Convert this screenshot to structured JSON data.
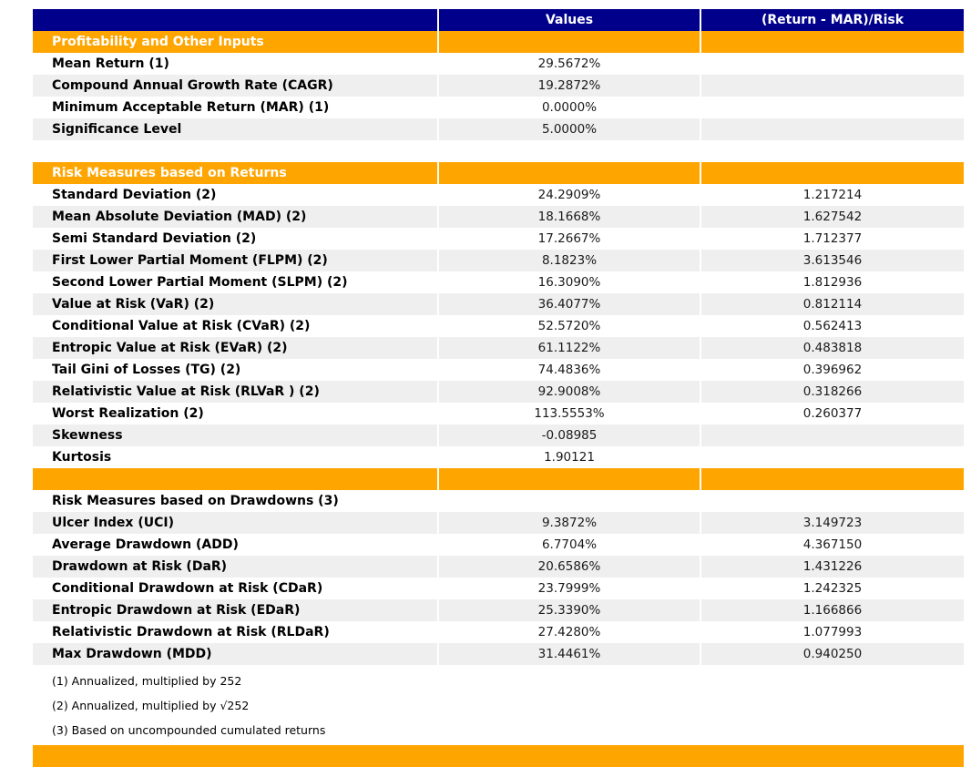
{
  "colors": {
    "header_bg": "#00008B",
    "section_bg": "#FFA500",
    "stripe_bg": "#EFEFEF",
    "header_text": "#FFFFFF"
  },
  "chart_data": {
    "type": "table",
    "title": "",
    "columns": [
      "",
      "Values",
      "(Return - MAR)/Risk"
    ],
    "rows": [
      {
        "kind": "section",
        "label": "Profitability and Other Inputs",
        "value": "",
        "ratio": ""
      },
      {
        "kind": "data",
        "label": "Mean Return (1)",
        "value": "29.5672%",
        "ratio": ""
      },
      {
        "kind": "data",
        "label": "Compound Annual Growth Rate (CAGR)",
        "value": "19.2872%",
        "ratio": ""
      },
      {
        "kind": "data",
        "label": "Minimum Acceptable Return (MAR) (1)",
        "value": "0.0000%",
        "ratio": ""
      },
      {
        "kind": "data",
        "label": "Significance Level",
        "value": "5.0000%",
        "ratio": ""
      },
      {
        "kind": "spacer",
        "label": "",
        "value": "",
        "ratio": ""
      },
      {
        "kind": "section",
        "label": "Risk Measures based on Returns",
        "value": "",
        "ratio": ""
      },
      {
        "kind": "data",
        "label": "Standard Deviation (2)",
        "value": "24.2909%",
        "ratio": "1.217214"
      },
      {
        "kind": "data",
        "label": "Mean Absolute Deviation (MAD) (2)",
        "value": "18.1668%",
        "ratio": "1.627542"
      },
      {
        "kind": "data",
        "label": "Semi Standard Deviation (2)",
        "value": "17.2667%",
        "ratio": "1.712377"
      },
      {
        "kind": "data",
        "label": "First Lower Partial Moment (FLPM) (2)",
        "value": "8.1823%",
        "ratio": "3.613546"
      },
      {
        "kind": "data",
        "label": "Second Lower Partial Moment (SLPM) (2)",
        "value": "16.3090%",
        "ratio": "1.812936"
      },
      {
        "kind": "data",
        "label": "Value at Risk (VaR) (2)",
        "value": "36.4077%",
        "ratio": "0.812114"
      },
      {
        "kind": "data",
        "label": "Conditional Value at Risk (CVaR) (2)",
        "value": "52.5720%",
        "ratio": "0.562413"
      },
      {
        "kind": "data",
        "label": "Entropic Value at Risk (EVaR) (2)",
        "value": "61.1122%",
        "ratio": "0.483818"
      },
      {
        "kind": "data",
        "label": "Tail Gini of Losses (TG) (2)",
        "value": "74.4836%",
        "ratio": "0.396962"
      },
      {
        "kind": "data",
        "label": "Relativistic Value at Risk (RLVaR ) (2)",
        "value": "92.9008%",
        "ratio": "0.318266"
      },
      {
        "kind": "data",
        "label": "Worst Realization (2)",
        "value": "113.5553%",
        "ratio": "0.260377"
      },
      {
        "kind": "data",
        "label": "Skewness",
        "value": "-0.08985",
        "ratio": ""
      },
      {
        "kind": "data",
        "label": "Kurtosis",
        "value": "1.90121",
        "ratio": ""
      },
      {
        "kind": "section",
        "label": "",
        "value": "",
        "ratio": ""
      },
      {
        "kind": "subsection",
        "label": "Risk Measures based on Drawdowns (3)",
        "value": "",
        "ratio": ""
      },
      {
        "kind": "data",
        "label": "Ulcer Index (UCI)",
        "value": "9.3872%",
        "ratio": "3.149723"
      },
      {
        "kind": "data",
        "label": "Average Drawdown (ADD)",
        "value": "6.7704%",
        "ratio": "4.367150"
      },
      {
        "kind": "data",
        "label": "Drawdown at Risk (DaR)",
        "value": "20.6586%",
        "ratio": "1.431226"
      },
      {
        "kind": "data",
        "label": "Conditional Drawdown at Risk (CDaR)",
        "value": "23.7999%",
        "ratio": "1.242325"
      },
      {
        "kind": "data",
        "label": "Entropic Drawdown at Risk (EDaR)",
        "value": "25.3390%",
        "ratio": "1.166866"
      },
      {
        "kind": "data",
        "label": "Relativistic Drawdown at Risk (RLDaR)",
        "value": "27.4280%",
        "ratio": "1.077993"
      },
      {
        "kind": "data",
        "label": "Max Drawdown (MDD)",
        "value": "31.4461%",
        "ratio": "0.940250"
      }
    ],
    "footnotes": [
      "(1) Annualized, multiplied by 252",
      "(2) Annualized, multiplied by √252",
      "(3) Based on uncompounded cumulated returns"
    ]
  }
}
